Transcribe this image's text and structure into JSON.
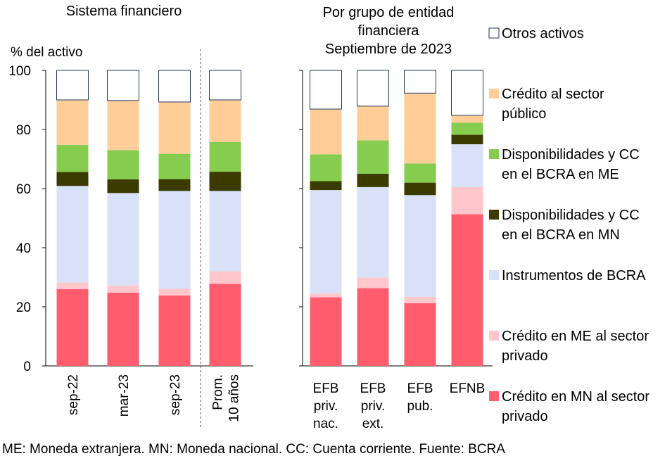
{
  "chart_data": {
    "type": "bar",
    "stacked": true,
    "ylabel": "% del activo",
    "ylim": [
      0,
      100
    ],
    "yticks": [
      0,
      20,
      40,
      60,
      80,
      100
    ],
    "grid": false,
    "legend_position": "right",
    "footnote": "ME: Moneda extranjera. MN: Moneda nacional. CC: Cuenta corriente. Fuente: BCRA",
    "panels": [
      {
        "title": [
          "Sistema financiero"
        ],
        "categories": [
          [
            "sep-22"
          ],
          [
            "mar-23"
          ],
          [
            "sep-23"
          ],
          [
            "Prom.",
            "10 años"
          ]
        ],
        "category_orientation": "vertical"
      },
      {
        "title": [
          "Por grupo de entidad",
          "financiera",
          "Septiembre de 2023"
        ],
        "categories": [
          [
            "EFB",
            "priv.",
            "nac."
          ],
          [
            "EFB",
            "priv.",
            "ext."
          ],
          [
            "EFB",
            "pub."
          ],
          [
            "EFNB"
          ]
        ],
        "category_orientation": "horizontal"
      }
    ],
    "series": [
      {
        "name": [
          "Crédito en MN al sector",
          "privado"
        ],
        "color": "#ff5c6e",
        "values": [
          26.0,
          24.8,
          23.8,
          27.8,
          23.2,
          26.3,
          21.2,
          51.3
        ]
      },
      {
        "name": [
          "Crédito en ME al sector",
          "privado"
        ],
        "color": "#ffc6cb",
        "values": [
          2.2,
          2.4,
          2.3,
          4.2,
          1.3,
          3.6,
          2.2,
          9.2
        ]
      },
      {
        "name": [
          "Instrumentos de BCRA"
        ],
        "color": "#d8e1f8",
        "values": [
          32.7,
          31.3,
          33.1,
          27.2,
          35.0,
          30.6,
          34.4,
          14.5
        ]
      },
      {
        "name": [
          "Disponibilidades y CC",
          "en el BCRA en MN"
        ],
        "color": "#3b3b00",
        "values": [
          4.7,
          4.6,
          4.0,
          6.5,
          3.0,
          4.5,
          4.2,
          3.2
        ]
      },
      {
        "name": [
          "Disponibilidades y CC",
          "en el BCRA en ME"
        ],
        "color": "#85cc4f",
        "values": [
          9.2,
          9.9,
          8.5,
          10.1,
          9.1,
          11.3,
          6.5,
          4.1
        ]
      },
      {
        "name": [
          "Crédito al sector",
          "público"
        ],
        "color": "#ffcd97",
        "values": [
          15.2,
          16.8,
          17.6,
          14.2,
          15.3,
          11.6,
          23.8,
          2.5
        ]
      },
      {
        "name": [
          "Otros activos"
        ],
        "color": "#ffffff",
        "values": [
          10.0,
          10.2,
          10.7,
          10.0,
          13.1,
          12.1,
          7.7,
          15.2
        ]
      }
    ]
  }
}
